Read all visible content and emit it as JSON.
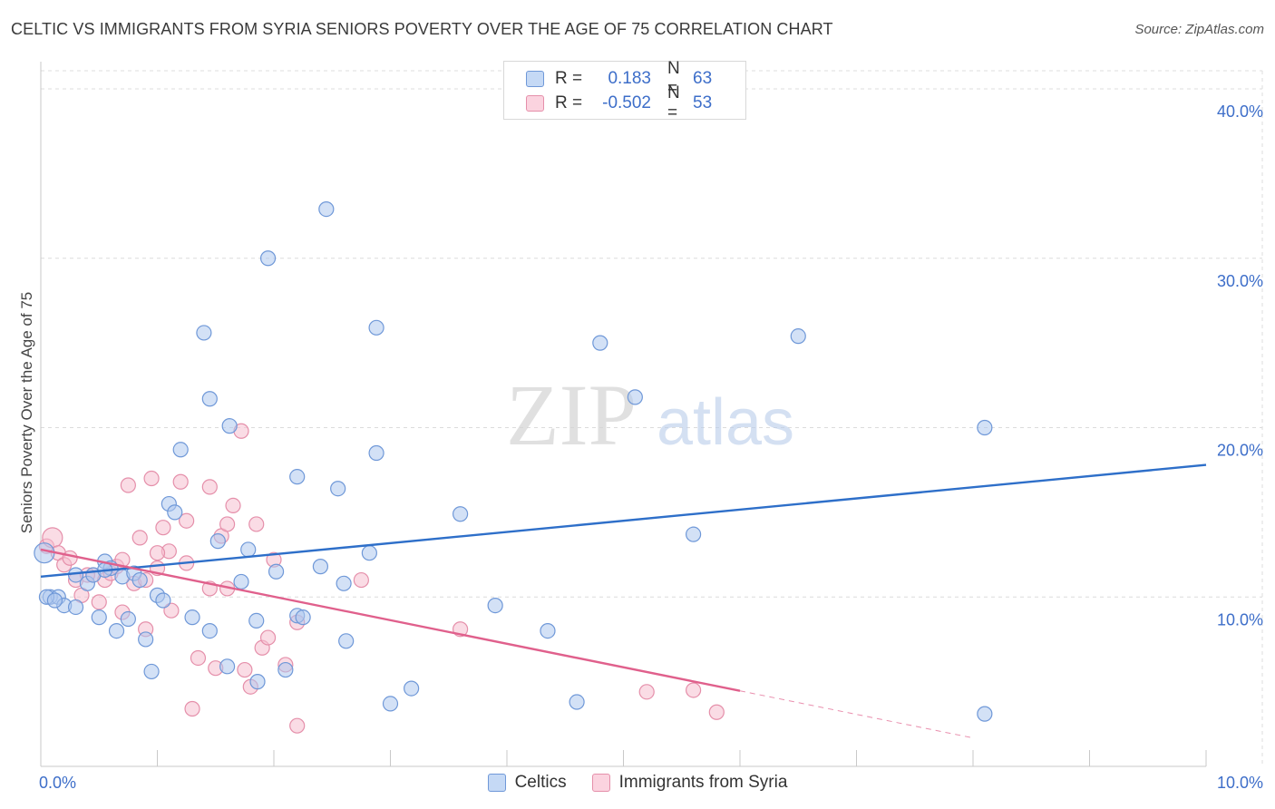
{
  "title": "CELTIC VS IMMIGRANTS FROM SYRIA SENIORS POVERTY OVER THE AGE OF 75 CORRELATION CHART",
  "source": "Source: ZipAtlas.com",
  "watermark": {
    "zip": "ZIP",
    "atlas": "atlas"
  },
  "legend": {
    "rows": [
      {
        "r_label": "R =",
        "r_value": "0.183",
        "n_label": "N =",
        "n_value": "63"
      },
      {
        "r_label": "R =",
        "r_value": "-0.502",
        "n_label": "N =",
        "n_value": "53"
      }
    ]
  },
  "bottom_legend": [
    "Celtics",
    "Immigrants from Syria"
  ],
  "colors": {
    "blue_fill": "#aec8ef",
    "blue_stroke": "#6f98d8",
    "blue_line": "#2e6fc9",
    "pink_fill": "#f6bfd0",
    "pink_stroke": "#e58faa",
    "pink_line": "#e0608c",
    "tick": "#3d6ec9",
    "grid": "#dcdcdc"
  },
  "chart_data": {
    "type": "scatter",
    "title": "CELTIC VS IMMIGRANTS FROM SYRIA SENIORS POVERTY OVER THE AGE OF 75 CORRELATION CHART",
    "xlabel": "",
    "ylabel": "Seniors Poverty Over the Age of 75",
    "xlim": [
      0,
      10
    ],
    "ylim": [
      0,
      40
    ],
    "x_tick_labels": [
      "0.0%",
      "10.0%"
    ],
    "y_ticks": [
      10,
      20,
      30,
      40
    ],
    "y_tick_labels": [
      "10.0%",
      "20.0%",
      "30.0%",
      "40.0%"
    ],
    "series": [
      {
        "name": "Celtics",
        "R": 0.183,
        "N": 63,
        "trend": {
          "x": [
            0,
            10
          ],
          "y": [
            11.2,
            17.8
          ],
          "dashed_from": null
        },
        "points": [
          [
            0.03,
            12.6
          ],
          [
            0.08,
            10.0
          ],
          [
            0.15,
            10.0
          ],
          [
            0.2,
            9.5
          ],
          [
            0.3,
            11.3
          ],
          [
            0.3,
            9.4
          ],
          [
            0.4,
            10.8
          ],
          [
            0.45,
            11.3
          ],
          [
            0.5,
            8.8
          ],
          [
            0.55,
            12.1
          ],
          [
            0.6,
            11.7
          ],
          [
            0.65,
            8.0
          ],
          [
            0.7,
            11.2
          ],
          [
            0.75,
            8.7
          ],
          [
            0.8,
            11.4
          ],
          [
            0.85,
            11.0
          ],
          [
            0.9,
            7.5
          ],
          [
            0.95,
            5.6
          ],
          [
            1.0,
            10.1
          ],
          [
            1.05,
            9.8
          ],
          [
            1.1,
            15.5
          ],
          [
            1.15,
            15.0
          ],
          [
            1.2,
            18.7
          ],
          [
            1.3,
            8.8
          ],
          [
            1.4,
            25.6
          ],
          [
            1.45,
            21.7
          ],
          [
            1.45,
            8.0
          ],
          [
            1.52,
            13.3
          ],
          [
            1.6,
            5.9
          ],
          [
            1.62,
            20.1
          ],
          [
            1.72,
            10.9
          ],
          [
            1.78,
            12.8
          ],
          [
            1.85,
            8.6
          ],
          [
            1.86,
            5.0
          ],
          [
            1.95,
            30.0
          ],
          [
            2.02,
            11.5
          ],
          [
            2.1,
            5.7
          ],
          [
            2.2,
            8.9
          ],
          [
            2.25,
            8.8
          ],
          [
            2.2,
            17.1
          ],
          [
            2.4,
            11.8
          ],
          [
            2.45,
            32.9
          ],
          [
            2.55,
            16.4
          ],
          [
            2.6,
            10.8
          ],
          [
            2.62,
            7.4
          ],
          [
            2.82,
            12.6
          ],
          [
            2.88,
            18.5
          ],
          [
            2.88,
            25.9
          ],
          [
            3.0,
            3.7
          ],
          [
            3.18,
            4.6
          ],
          [
            3.6,
            14.9
          ],
          [
            3.9,
            9.5
          ],
          [
            4.35,
            8.0
          ],
          [
            4.6,
            3.8
          ],
          [
            4.8,
            25.0
          ],
          [
            5.1,
            21.8
          ],
          [
            5.6,
            13.7
          ],
          [
            6.5,
            25.4
          ],
          [
            8.1,
            20.0
          ],
          [
            8.1,
            3.1
          ],
          [
            0.05,
            10.0
          ],
          [
            0.12,
            9.8
          ],
          [
            0.55,
            11.6
          ]
        ]
      },
      {
        "name": "Immigrants from Syria",
        "R": -0.502,
        "N": 53,
        "trend": {
          "x": [
            0,
            10
          ],
          "y": [
            12.8,
            -1.1
          ],
          "solid_until_x": 6.0
        },
        "points": [
          [
            0.05,
            13.0
          ],
          [
            0.1,
            13.5
          ],
          [
            0.15,
            12.6
          ],
          [
            0.2,
            11.9
          ],
          [
            0.25,
            12.3
          ],
          [
            0.3,
            11.0
          ],
          [
            0.35,
            10.1
          ],
          [
            0.45,
            11.3
          ],
          [
            0.5,
            9.7
          ],
          [
            0.55,
            11.0
          ],
          [
            0.6,
            11.4
          ],
          [
            0.65,
            11.8
          ],
          [
            0.7,
            12.2
          ],
          [
            0.7,
            9.1
          ],
          [
            0.75,
            16.6
          ],
          [
            0.8,
            10.8
          ],
          [
            0.85,
            13.5
          ],
          [
            0.9,
            11.0
          ],
          [
            0.9,
            8.1
          ],
          [
            0.95,
            17.0
          ],
          [
            1.0,
            11.7
          ],
          [
            1.05,
            14.1
          ],
          [
            1.1,
            12.7
          ],
          [
            1.12,
            9.2
          ],
          [
            1.2,
            16.8
          ],
          [
            1.25,
            14.5
          ],
          [
            1.25,
            12.0
          ],
          [
            1.3,
            3.4
          ],
          [
            1.35,
            6.4
          ],
          [
            1.45,
            10.5
          ],
          [
            1.45,
            16.5
          ],
          [
            1.5,
            5.8
          ],
          [
            1.55,
            13.6
          ],
          [
            1.6,
            14.3
          ],
          [
            1.6,
            10.5
          ],
          [
            1.65,
            15.4
          ],
          [
            1.72,
            19.8
          ],
          [
            1.75,
            5.7
          ],
          [
            1.8,
            4.7
          ],
          [
            1.85,
            14.3
          ],
          [
            1.9,
            7.0
          ],
          [
            1.95,
            7.6
          ],
          [
            2.0,
            12.2
          ],
          [
            2.1,
            6.0
          ],
          [
            2.2,
            8.5
          ],
          [
            2.2,
            2.4
          ],
          [
            2.75,
            11.0
          ],
          [
            3.6,
            8.1
          ],
          [
            5.2,
            4.4
          ],
          [
            5.6,
            4.5
          ],
          [
            5.8,
            3.2
          ],
          [
            1.0,
            12.6
          ],
          [
            0.4,
            11.3
          ]
        ]
      }
    ]
  }
}
